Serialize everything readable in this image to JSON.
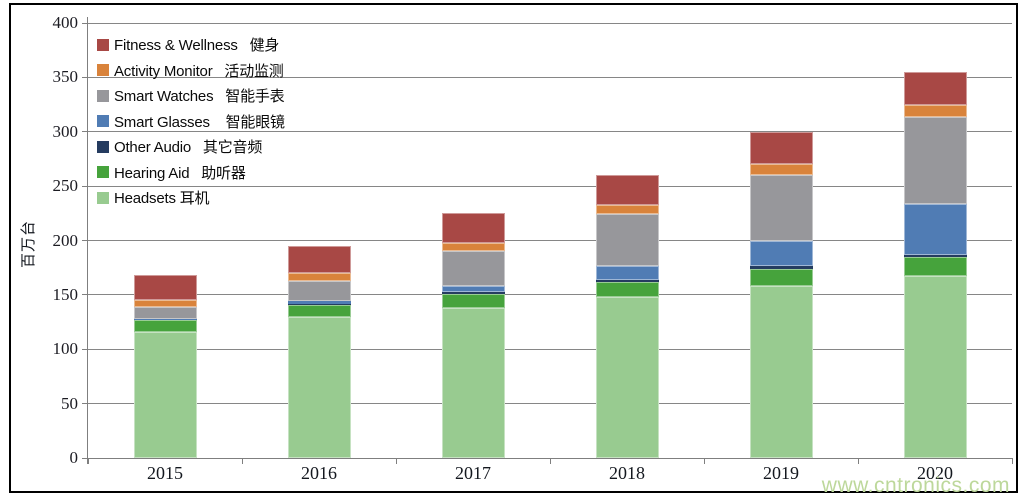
{
  "chart_data": {
    "type": "bar",
    "stacked": true,
    "title": "",
    "ylabel": "百万台",
    "ylim": [
      0,
      400
    ],
    "ytick_step": 50,
    "yticks": [
      400,
      350,
      300,
      250,
      200,
      150,
      100,
      50,
      0
    ],
    "grid": true,
    "legend_position": "top-left",
    "categories": [
      "2015",
      "2016",
      "2017",
      "2018",
      "2019",
      "2020"
    ],
    "series": [
      {
        "id": "headsets",
        "name": "Headsets",
        "legend_label": "Headsets 耳机",
        "color": "#98cb90",
        "values": [
          116,
          130,
          138,
          148,
          158,
          167
        ]
      },
      {
        "id": "hearing-aid",
        "name": "Hearing Aid",
        "legend_label": "Hearing Aid   助听器",
        "color": "#46a33c",
        "values": [
          11,
          11,
          13,
          14,
          16,
          18
        ]
      },
      {
        "id": "other-audio",
        "name": "Other Audio",
        "legend_label": "Other Audio   其它音频",
        "color": "#253c60",
        "values": [
          0,
          1,
          2,
          2,
          3,
          2
        ]
      },
      {
        "id": "smart-glasses",
        "name": "Smart Glasses",
        "legend_label": "Smart Glasses    智能眼镜",
        "color": "#507cb4",
        "values": [
          1,
          2,
          5,
          13,
          23,
          47
        ]
      },
      {
        "id": "smart-watches",
        "name": "Smart Watches",
        "legend_label": "Smart Watches   智能手表",
        "color": "#97979b",
        "values": [
          11,
          19,
          32,
          47,
          60,
          80
        ]
      },
      {
        "id": "activity-monitor",
        "name": "Activity Monitor",
        "legend_label": "Activity Monitor   活动监测",
        "color": "#d9833b",
        "values": [
          6,
          7,
          8,
          9,
          10,
          11
        ]
      },
      {
        "id": "fitness-wellness",
        "name": "Fitness & Wellness",
        "legend_label": "Fitness & Wellness   健身",
        "color": "#a84845",
        "values": [
          23,
          25,
          27,
          27,
          30,
          30
        ]
      }
    ],
    "legend_order_top_to_bottom": [
      "Fitness & Wellness",
      "Activity Monitor",
      "Smart Watches",
      "Smart Glasses",
      "Other Audio",
      "Hearing Aid",
      "Headsets"
    ]
  },
  "watermark": "www.cntronics.com",
  "colors": {
    "gridline": "#868686",
    "axis": "#7f7f7f",
    "chart_border": "#000000",
    "tick_text": "#14181f",
    "watermark_text": "#bdd89b"
  }
}
